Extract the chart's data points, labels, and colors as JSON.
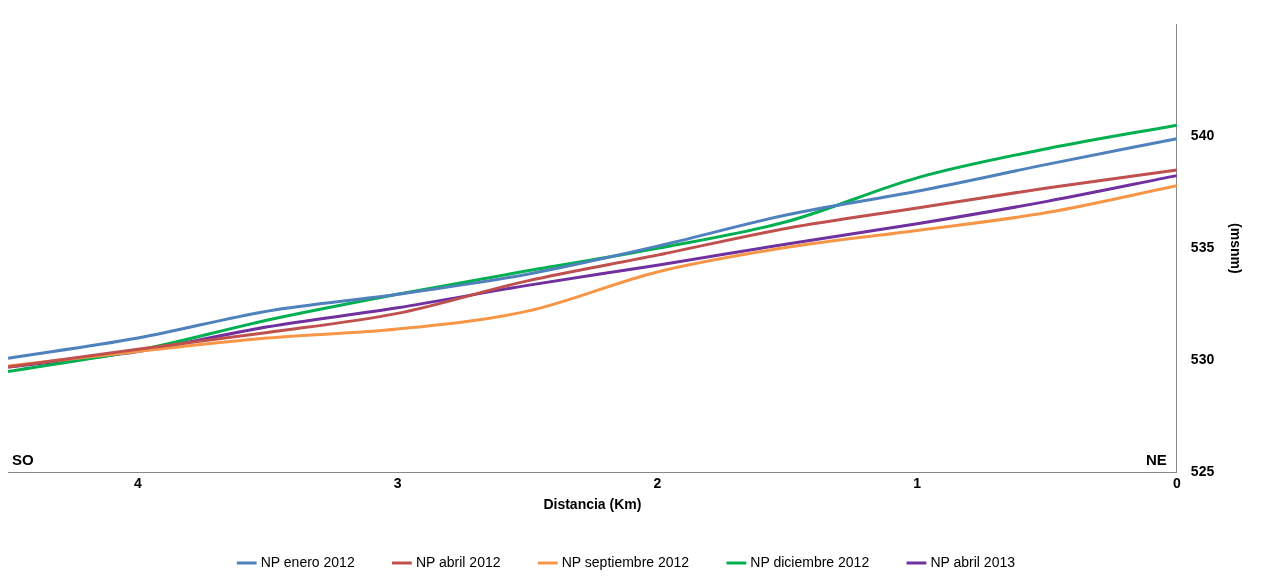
{
  "chart_data": {
    "type": "line",
    "xlabel": "Distancia (Km)",
    "ylabel": "(msnm)",
    "x": [
      4.5,
      4,
      3.5,
      3,
      2.5,
      2,
      1.5,
      1,
      0.5,
      0
    ],
    "xlim": [
      4.5,
      0
    ],
    "xticks": [
      4,
      3,
      2,
      1,
      0
    ],
    "ylim": [
      525,
      545
    ],
    "yticks": [
      525,
      530,
      535,
      540
    ],
    "series": [
      {
        "name": "NP enero 2012",
        "color": "#4f81bd",
        "values": [
          530.1,
          531.0,
          532.2,
          532.95,
          533.85,
          535.1,
          536.5,
          537.55,
          538.75,
          539.9
        ]
      },
      {
        "name": "NP abril 2012",
        "color": "#c0504d",
        "values": [
          529.7,
          530.5,
          531.25,
          532.1,
          533.55,
          534.7,
          535.9,
          536.8,
          537.7,
          538.5
        ]
      },
      {
        "name": "NP septiembre 2012",
        "color": "#f79646",
        "values": [
          529.75,
          530.4,
          531.0,
          531.4,
          532.2,
          533.95,
          535.05,
          535.8,
          536.6,
          537.8
        ]
      },
      {
        "name": "NP diciembre 2012",
        "color": "#00b050",
        "values": [
          529.5,
          530.45,
          531.8,
          532.95,
          534.0,
          535.0,
          536.2,
          538.15,
          539.45,
          540.5
        ]
      },
      {
        "name": "NP abril 2013",
        "color": "#7030a0",
        "values": [
          529.7,
          530.4,
          531.5,
          532.35,
          533.35,
          534.25,
          535.2,
          536.1,
          537.1,
          538.25
        ]
      }
    ],
    "annotations": [
      "SO",
      "NE"
    ],
    "grid": false,
    "legend": "bottom",
    "marker": "none",
    "line_style": "solid"
  }
}
